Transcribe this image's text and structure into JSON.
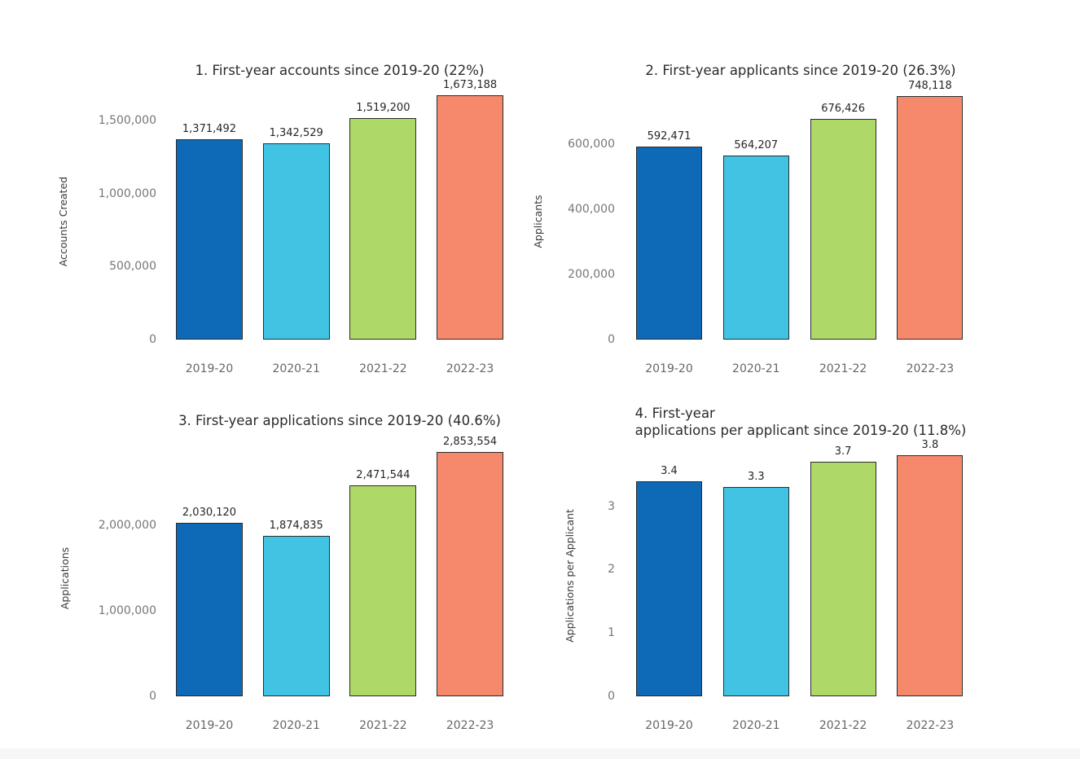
{
  "page": {
    "background": "#ffffff",
    "footer_strip_color": "#f7f7f6"
  },
  "palette": {
    "bar_colors": [
      "#0e6ab6",
      "#41c4e4",
      "#aed868",
      "#f6886c"
    ],
    "bar_edge": "#2b2b2b",
    "tick_color": "#767676",
    "value_label_color": "#262626",
    "title_color": "#2b2b2b"
  },
  "chart_data": [
    {
      "type": "bar",
      "title": "1. First-year accounts since 2019-20 (22%)",
      "ylabel": "Accounts Created",
      "xlabel": "",
      "categories": [
        "2019-20",
        "2020-21",
        "2021-22",
        "2022-23"
      ],
      "values": [
        1371492,
        1342529,
        1519200,
        1673188
      ],
      "value_labels": [
        "1,371,492",
        "1,342,529",
        "1,519,200",
        "1,673,188"
      ],
      "ytick_values": [
        0,
        500000,
        1000000,
        1500000
      ],
      "ytick_labels": [
        "0",
        "500,000",
        "1,000,000",
        "1,500,000"
      ],
      "ylim": [
        0,
        1760000
      ],
      "grid": false,
      "legend": "none"
    },
    {
      "type": "bar",
      "title": "2. First-year applicants since 2019-20 (26.3%)",
      "ylabel": "Applicants",
      "xlabel": "",
      "categories": [
        "2019-20",
        "2020-21",
        "2021-22",
        "2022-23"
      ],
      "values": [
        592471,
        564207,
        676426,
        748118
      ],
      "value_labels": [
        "592,471",
        "564,207",
        "676,426",
        "748,118"
      ],
      "ytick_values": [
        0,
        200000,
        400000,
        600000
      ],
      "ytick_labels": [
        "0",
        "200,000",
        "400,000",
        "600,000"
      ],
      "ylim": [
        0,
        786000
      ],
      "grid": false,
      "legend": "none"
    },
    {
      "type": "bar",
      "title": "3. First-year applications since 2019-20 (40.6%)",
      "ylabel": "Applications",
      "xlabel": "",
      "categories": [
        "2019-20",
        "2020-21",
        "2021-22",
        "2022-23"
      ],
      "values": [
        2030120,
        1874835,
        2471544,
        2853554
      ],
      "value_labels": [
        "2,030,120",
        "1,874,835",
        "2,471,544",
        "2,853,554"
      ],
      "ytick_values": [
        0,
        1000000,
        2000000
      ],
      "ytick_labels": [
        "0",
        "1,000,000",
        "2,000,000"
      ],
      "ylim": [
        0,
        3000000
      ],
      "grid": false,
      "legend": "none"
    },
    {
      "type": "bar",
      "title": "4. First-year\napplications per applicant since 2019-20 (11.8%)",
      "ylabel": "Applications per Applicant",
      "xlabel": "",
      "categories": [
        "2019-20",
        "2020-21",
        "2021-22",
        "2022-23"
      ],
      "values": [
        3.4,
        3.3,
        3.7,
        3.8
      ],
      "value_labels": [
        "3.4",
        "3.3",
        "3.7",
        "3.8"
      ],
      "ytick_values": [
        0,
        1,
        2,
        3
      ],
      "ytick_labels": [
        "0",
        "1",
        "2",
        "3"
      ],
      "ylim": [
        0,
        4.0
      ],
      "grid": false,
      "legend": "none"
    }
  ]
}
